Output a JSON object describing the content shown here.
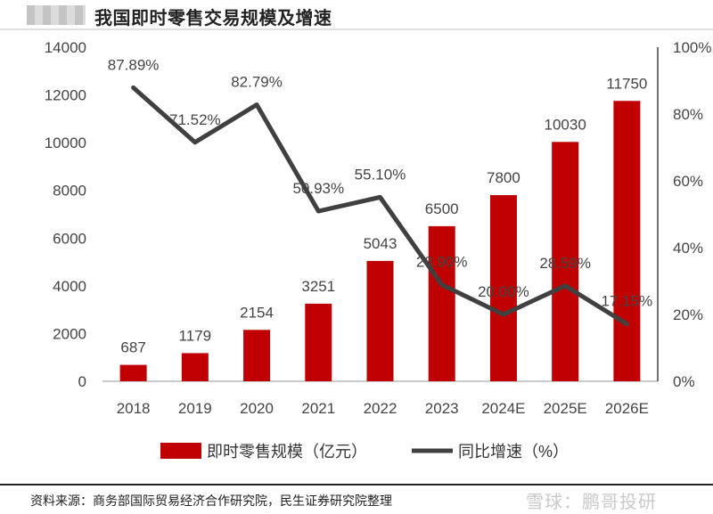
{
  "header": {
    "title": "我国即时零售交易规模及增速"
  },
  "chart_data": {
    "type": "bar",
    "categories": [
      "2018",
      "2019",
      "2020",
      "2021",
      "2022",
      "2023",
      "2024E",
      "2025E",
      "2026E"
    ],
    "series": [
      {
        "name": "即时零售规模（亿元）",
        "type": "bar",
        "axis": "left",
        "color": "#c00000",
        "values": [
          687,
          1179,
          2154,
          3251,
          5043,
          6500,
          7800,
          10030,
          11750
        ],
        "labels": [
          "687",
          "1179",
          "2154",
          "3251",
          "5043",
          "6500",
          "7800",
          "10030",
          "11750"
        ]
      },
      {
        "name": "同比增速（%）",
        "type": "line",
        "axis": "right",
        "color": "#404040",
        "values": [
          87.89,
          71.52,
          82.79,
          50.93,
          55.1,
          28.9,
          20.0,
          28.59,
          17.15
        ],
        "labels": [
          "87.89%",
          "71.52%",
          "82.79%",
          "50.93%",
          "55.10%",
          "28.90%",
          "20.00%",
          "28.59%",
          "17.15%"
        ]
      }
    ],
    "y_left": {
      "ylim": [
        0,
        14000
      ],
      "ticks": [
        "0",
        "2000",
        "4000",
        "6000",
        "8000",
        "10000",
        "12000",
        "14000"
      ]
    },
    "y_right": {
      "ylim": [
        0,
        100
      ],
      "ticks": [
        "0%",
        "20%",
        "40%",
        "60%",
        "80%",
        "100%"
      ]
    },
    "legend_position": "bottom",
    "grid": false
  },
  "footer": {
    "source": "资料来源：商务部国际贸易经济合作研究院，民生证券研究院整理",
    "watermark": "雪球：鹏哥投研"
  }
}
